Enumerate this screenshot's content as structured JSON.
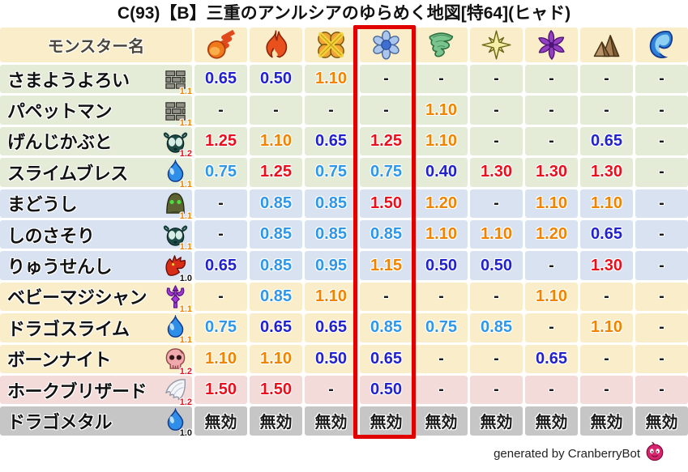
{
  "title": "C(93)【B】三重のアンルシアのゆらめく地図[特64](ヒャド)",
  "credit": {
    "text": "generated by CranberryBot",
    "icon": "cranberry-slime-icon"
  },
  "table": {
    "monster_column_header": "モンスター名",
    "immune_label": "無効",
    "highlighted_column_index": 4
  },
  "chart_data": {
    "type": "table",
    "columns": [
      "モンスター名",
      "fireball",
      "flame",
      "burst",
      "snowflake",
      "tornado",
      "star",
      "pinwheel",
      "mountain",
      "wave"
    ],
    "element_icons": [
      "fireball-icon",
      "flame-icon",
      "burst-icon",
      "snowflake-icon",
      "tornado-icon",
      "star-icon",
      "pinwheel-icon",
      "mountain-icon",
      "wave-icon"
    ],
    "rows": [
      {
        "monster": "さまようよろい",
        "icon": "brick-wall-icon",
        "multiplier": "1.1",
        "group": "green",
        "values": [
          "0.65",
          "0.50",
          "1.10",
          "-",
          "-",
          "-",
          "-",
          "-",
          "-"
        ]
      },
      {
        "monster": "パペットマン",
        "icon": "brick-wall-icon",
        "multiplier": "1.1",
        "group": "green",
        "values": [
          "-",
          "-",
          "-",
          "-",
          "1.10",
          "-",
          "-",
          "-",
          "-"
        ]
      },
      {
        "monster": "げんじかぶと",
        "icon": "insect-head-icon",
        "multiplier": "1.2",
        "group": "green",
        "values": [
          "1.25",
          "1.10",
          "0.65",
          "1.25",
          "1.10",
          "-",
          "-",
          "0.65",
          "-"
        ]
      },
      {
        "monster": "スライムブレス",
        "icon": "slime-icon",
        "multiplier": "1.1",
        "group": "green",
        "values": [
          "0.75",
          "1.25",
          "0.75",
          "0.75",
          "0.40",
          "1.30",
          "1.30",
          "1.30",
          "-"
        ]
      },
      {
        "monster": "まどうし",
        "icon": "hooded-mage-icon",
        "multiplier": "1.1",
        "group": "blue",
        "values": [
          "-",
          "0.85",
          "0.85",
          "1.50",
          "1.20",
          "-",
          "1.10",
          "1.10",
          "-"
        ]
      },
      {
        "monster": "しのさそり",
        "icon": "insect-head-icon",
        "multiplier": "1.1",
        "group": "blue",
        "values": [
          "-",
          "0.85",
          "0.85",
          "0.85",
          "1.10",
          "1.10",
          "1.20",
          "0.65",
          "-"
        ]
      },
      {
        "monster": "りゅうせんし",
        "icon": "dragon-head-icon",
        "multiplier": "1.0",
        "group": "blue",
        "values": [
          "0.65",
          "0.85",
          "0.95",
          "1.15",
          "0.50",
          "0.50",
          "-",
          "1.30",
          "-"
        ]
      },
      {
        "monster": "ベビーマジシャン",
        "icon": "trident-icon",
        "multiplier": "1.1",
        "group": "cream",
        "values": [
          "-",
          "0.85",
          "1.10",
          "-",
          "-",
          "-",
          "1.10",
          "-",
          "-"
        ]
      },
      {
        "monster": "ドラゴスライム",
        "icon": "slime-icon",
        "multiplier": "1.1",
        "group": "cream",
        "values": [
          "0.75",
          "0.65",
          "0.65",
          "0.85",
          "0.75",
          "0.85",
          "-",
          "1.10",
          "-"
        ]
      },
      {
        "monster": "ボーンナイト",
        "icon": "skull-icon",
        "multiplier": "1.2",
        "group": "cream",
        "values": [
          "1.10",
          "1.10",
          "0.50",
          "0.65",
          "-",
          "-",
          "0.65",
          "-",
          "-"
        ]
      },
      {
        "monster": "ホークブリザード",
        "icon": "wing-icon",
        "multiplier": "1.2",
        "group": "pink",
        "values": [
          "1.50",
          "1.50",
          "-",
          "0.50",
          "-",
          "-",
          "-",
          "-",
          "-"
        ]
      },
      {
        "monster": "ドラゴメタル",
        "icon": "slime-icon",
        "multiplier": "1.0",
        "group": "gray",
        "values": [
          "無効",
          "無効",
          "無効",
          "無効",
          "無効",
          "無効",
          "無効",
          "無効",
          "無効"
        ]
      }
    ]
  },
  "palette": {
    "header_bg": "#faeeca",
    "row_green": "#e4ebd7",
    "row_blue": "#d8e2f1",
    "row_cream": "#faeeca",
    "row_pink": "#f3dbda",
    "row_gray": "#c6c6c6",
    "value_strong_resist": "#2222cc",
    "value_resist": "#2f96e8",
    "value_weak": "#f08300",
    "value_very_weak": "#e8101c",
    "value_neutral": "#1a1a1a",
    "multiplier_1_0": "#111111",
    "multiplier_1_1": "#f08300",
    "multiplier_1_2": "#e8101c",
    "highlight_border": "#e10000"
  }
}
